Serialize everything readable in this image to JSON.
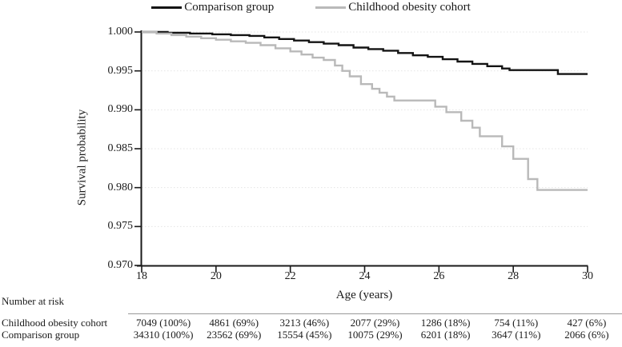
{
  "legend": {
    "items": [
      {
        "label": "Comparison group",
        "color": "#141414"
      },
      {
        "label": "Childhood obesity cohort",
        "color": "#b9b9b9"
      }
    ]
  },
  "chart_data": {
    "type": "line",
    "subtype": "kaplan-meier-step",
    "title": "",
    "xlabel": "Age (years)",
    "ylabel": "Survival probability",
    "xlim": [
      18,
      30
    ],
    "ylim": [
      0.97,
      1.0
    ],
    "xticks": [
      18,
      20,
      22,
      24,
      26,
      28,
      30
    ],
    "yticks": [
      "1.000",
      "0.995",
      "0.990",
      "0.985",
      "0.980",
      "0.975",
      "0.970"
    ],
    "grid": "horizontal-dotted",
    "legend_position": "top-center",
    "series": [
      {
        "name": "Comparison group",
        "color": "#141414",
        "points": [
          [
            18.0,
            1.0
          ],
          [
            18.7,
            0.9999
          ],
          [
            19.3,
            0.9998
          ],
          [
            19.9,
            0.9997
          ],
          [
            20.4,
            0.9996
          ],
          [
            20.9,
            0.9995
          ],
          [
            21.3,
            0.9993
          ],
          [
            21.7,
            0.9991
          ],
          [
            22.1,
            0.9989
          ],
          [
            22.5,
            0.9987
          ],
          [
            22.9,
            0.9985
          ],
          [
            23.3,
            0.9983
          ],
          [
            23.7,
            0.998
          ],
          [
            24.1,
            0.9978
          ],
          [
            24.5,
            0.9976
          ],
          [
            24.9,
            0.9973
          ],
          [
            25.3,
            0.997
          ],
          [
            25.7,
            0.9968
          ],
          [
            26.1,
            0.9965
          ],
          [
            26.5,
            0.9962
          ],
          [
            26.9,
            0.9959
          ],
          [
            27.3,
            0.9956
          ],
          [
            27.7,
            0.9953
          ],
          [
            27.9,
            0.9951
          ],
          [
            29.2,
            0.9946
          ],
          [
            30.0,
            0.9946
          ]
        ]
      },
      {
        "name": "Childhood obesity cohort",
        "color": "#b9b9b9",
        "points": [
          [
            18.0,
            1.0
          ],
          [
            18.4,
            0.9998
          ],
          [
            18.8,
            0.9996
          ],
          [
            19.2,
            0.9994
          ],
          [
            19.6,
            0.9992
          ],
          [
            20.0,
            0.999
          ],
          [
            20.4,
            0.9988
          ],
          [
            20.8,
            0.9986
          ],
          [
            21.2,
            0.9983
          ],
          [
            21.6,
            0.9979
          ],
          [
            22.0,
            0.9975
          ],
          [
            22.3,
            0.9971
          ],
          [
            22.6,
            0.9967
          ],
          [
            22.9,
            0.9964
          ],
          [
            23.2,
            0.9957
          ],
          [
            23.4,
            0.995
          ],
          [
            23.6,
            0.9943
          ],
          [
            23.9,
            0.9933
          ],
          [
            24.2,
            0.9927
          ],
          [
            24.4,
            0.9922
          ],
          [
            24.6,
            0.9917
          ],
          [
            24.8,
            0.9912
          ],
          [
            25.9,
            0.9904
          ],
          [
            26.2,
            0.9897
          ],
          [
            26.6,
            0.9886
          ],
          [
            26.9,
            0.9877
          ],
          [
            27.1,
            0.9866
          ],
          [
            27.7,
            0.9853
          ],
          [
            28.0,
            0.9837
          ],
          [
            28.4,
            0.9811
          ],
          [
            28.65,
            0.9797
          ],
          [
            30.0,
            0.9797
          ]
        ]
      }
    ]
  },
  "risk_table": {
    "title": "Number at risk",
    "rows": [
      {
        "label": "Childhood obesity cohort",
        "values": [
          "7049 (100%)",
          "4861 (69%)",
          "3213 (46%)",
          "2077 (29%)",
          "1286 (18%)",
          "754 (11%)",
          "427 (6%)"
        ]
      },
      {
        "label": "Comparison group",
        "values": [
          "34310 (100%)",
          "23562 (69%)",
          "15554 (45%)",
          "10075 (29%)",
          "6201 (18%)",
          "3647 (11%)",
          "2066 (6%)"
        ]
      }
    ]
  }
}
